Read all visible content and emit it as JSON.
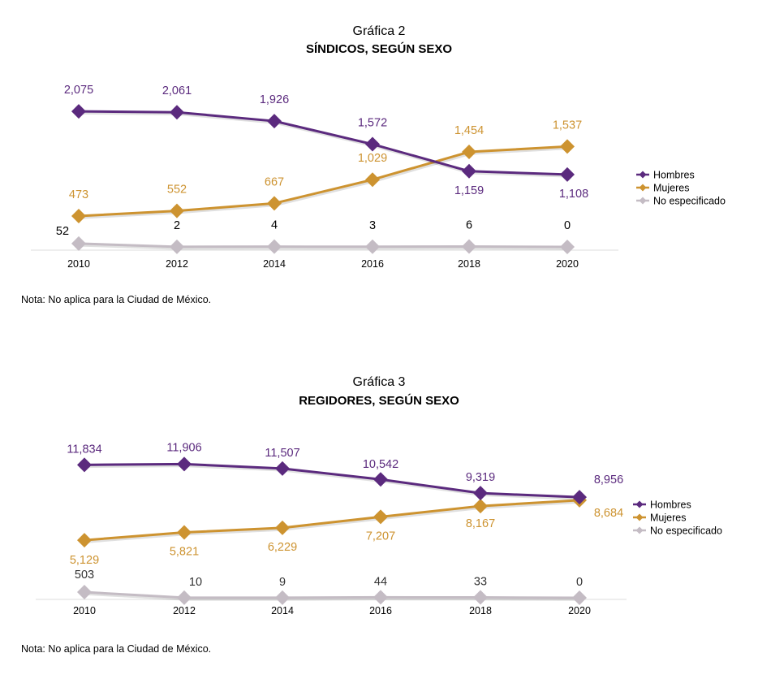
{
  "colors": {
    "hombres": "#5b2a7e",
    "mujeres": "#cd9330",
    "no_especificado": "#c4bcc4",
    "axis": "#dddddd"
  },
  "chart_data": [
    {
      "type": "line",
      "title": "Gráfica 2",
      "subtitle": "SÍNDICOS, SEGÚN SEXO",
      "note": "Nota: No aplica para la Ciudad de México.",
      "categories": [
        "2010",
        "2012",
        "2014",
        "2016",
        "2018",
        "2020"
      ],
      "series": [
        {
          "name": "Hombres",
          "values": [
            2075,
            2061,
            1926,
            1572,
            1159,
            1108
          ],
          "labels": [
            "2,075",
            "2,061",
            "1,926",
            "1,572",
            "1,159",
            "1,108"
          ]
        },
        {
          "name": "Mujeres",
          "values": [
            473,
            552,
            667,
            1029,
            1454,
            1537
          ],
          "labels": [
            "473",
            "552",
            "667",
            "1,029",
            "1,454",
            "1,537"
          ]
        },
        {
          "name": "No especificado",
          "values": [
            52,
            2,
            4,
            3,
            6,
            0
          ],
          "labels": [
            "52",
            "2",
            "4",
            "3",
            "6",
            "0"
          ]
        }
      ],
      "ylim": [
        0,
        2250
      ],
      "grid": false,
      "legend": "right"
    },
    {
      "type": "line",
      "title": "Gráfica 3",
      "subtitle": "REGIDORES, SEGÚN SEXO",
      "note": "Nota: No aplica para la Ciudad de México.",
      "categories": [
        "2010",
        "2012",
        "2014",
        "2016",
        "2018",
        "2020"
      ],
      "series": [
        {
          "name": "Hombres",
          "values": [
            11834,
            11906,
            11507,
            10542,
            9319,
            8956
          ],
          "labels": [
            "11,834",
            "11,906",
            "11,507",
            "10,542",
            "9,319",
            "8,956"
          ]
        },
        {
          "name": "Mujeres",
          "values": [
            5129,
            5821,
            6229,
            7207,
            8167,
            8684
          ],
          "labels": [
            "5,129",
            "5,821",
            "6,229",
            "7,207",
            "8,167",
            "8,684"
          ]
        },
        {
          "name": "No especificado",
          "values": [
            503,
            10,
            9,
            44,
            33,
            0
          ],
          "labels": [
            "503",
            "10",
            "9",
            "44",
            "33",
            "0"
          ]
        }
      ],
      "ylim": [
        0,
        12800
      ],
      "grid": false,
      "legend": "right"
    }
  ]
}
